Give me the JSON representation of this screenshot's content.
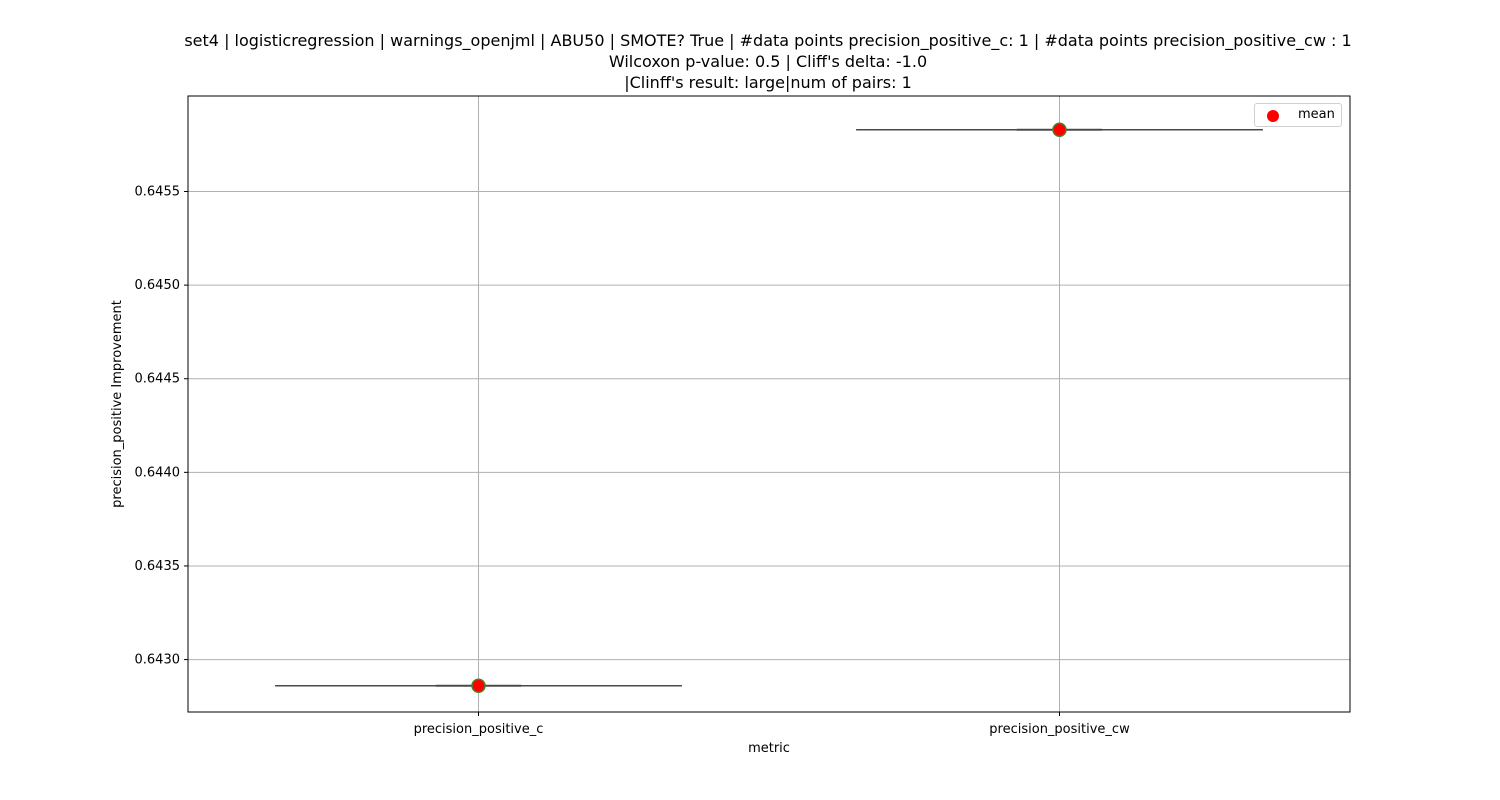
{
  "chart_data": {
    "type": "box",
    "title_lines": [
      "set4 | logisticregression | warnings_openjml | ABU50 | SMOTE? True | #data points precision_positive_c: 1 | #data points precision_positive_cw : 1",
      "Wilcoxon p-value: 0.5 | Cliff's delta: -1.0",
      "|Clinff's result: large|num of pairs: 1"
    ],
    "xlabel": "metric",
    "ylabel": "precision_positive Improvement",
    "categories": [
      "precision_positive_c",
      "precision_positive_cw"
    ],
    "values": [
      0.64286,
      0.64583
    ],
    "means": [
      0.64286,
      0.64583
    ],
    "ylim": [
      0.64272,
      0.64601
    ],
    "yticks": [
      0.643,
      0.6435,
      0.644,
      0.6445,
      0.645,
      0.6455
    ],
    "ytick_labels": [
      "0.6430",
      "0.6435",
      "0.6440",
      "0.6445",
      "0.6450",
      "0.6455"
    ],
    "grid": true,
    "legend": {
      "position": "top-right",
      "entries": [
        {
          "label": "mean",
          "color": "#ff0000"
        }
      ]
    },
    "colors": {
      "mean_marker": "#ff0000",
      "mean_edge": "#4e7d2a",
      "box_line": "#555555",
      "grid": "#b0b0b0"
    }
  }
}
